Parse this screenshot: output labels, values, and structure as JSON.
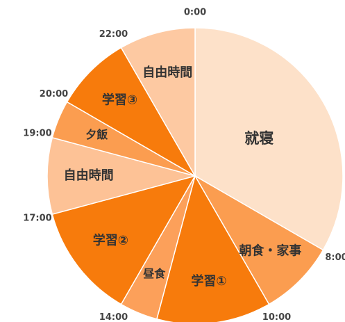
{
  "chart_data": {
    "type": "pie",
    "categories": [
      "就寝",
      "朝食・家事",
      "学習①",
      "昼食",
      "学習②",
      "自由時間",
      "夕飯",
      "学習③",
      "自由時間"
    ],
    "values": [
      8,
      2,
      3,
      1,
      3,
      2,
      1,
      2,
      2
    ],
    "colors": [
      "#fde1c9",
      "#fb9d50",
      "#f77b0c",
      "#fca05a",
      "#f77b0c",
      "#fdc296",
      "#fb9d50",
      "#f77b0c",
      "#fdc9a2"
    ],
    "boundary_labels": [
      "0:00",
      "8:00",
      "10:00",
      null,
      "14:00",
      "17:00",
      "19:00",
      "20:00",
      "22:00"
    ]
  }
}
